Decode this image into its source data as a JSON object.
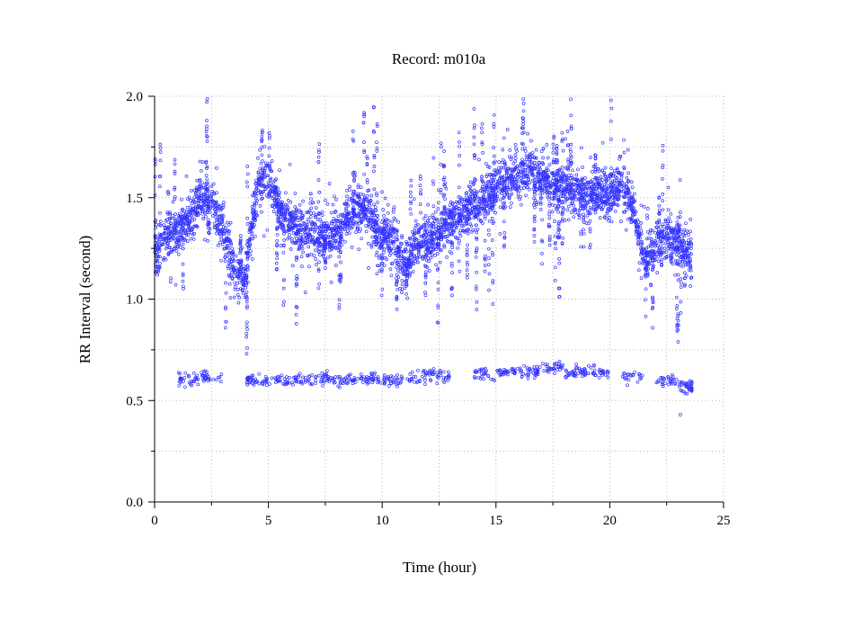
{
  "chart_data": {
    "type": "scatter",
    "title": "Record:  m010a",
    "xlabel": "Time (hour)",
    "ylabel": "RR Interval (second)",
    "xlim": [
      0,
      25
    ],
    "ylim": [
      0,
      2.0
    ],
    "x_ticks": [
      0,
      5,
      10,
      15,
      20,
      25
    ],
    "x_tick_labels": [
      "0",
      "5",
      "10",
      "15",
      "20",
      "25"
    ],
    "x_minor_ticks": [
      2.5,
      7.5,
      12.5,
      17.5,
      22.5
    ],
    "y_ticks": [
      0,
      0.5,
      1.0,
      1.5,
      2.0
    ],
    "y_tick_labels": [
      "0.0",
      "0.5",
      "1.0",
      "1.5",
      "2.0"
    ],
    "y_minor_ticks": [
      0.25,
      0.75,
      1.25,
      1.75
    ],
    "grid": true,
    "marker": "open-circle",
    "series_color": "#3333ff",
    "series": [
      {
        "band_centers": [
          [
            0.0,
            1.22
          ],
          [
            0.5,
            1.3
          ],
          [
            1.0,
            1.33
          ],
          [
            1.5,
            1.4
          ],
          [
            2.0,
            1.5
          ],
          [
            2.5,
            1.48
          ],
          [
            3.0,
            1.35
          ],
          [
            3.5,
            1.12
          ],
          [
            4.0,
            1.12
          ],
          [
            4.5,
            1.55
          ],
          [
            5.0,
            1.6
          ],
          [
            5.5,
            1.45
          ],
          [
            6.0,
            1.38
          ],
          [
            6.5,
            1.33
          ],
          [
            7.0,
            1.32
          ],
          [
            7.5,
            1.3
          ],
          [
            8.0,
            1.33
          ],
          [
            8.5,
            1.4
          ],
          [
            9.0,
            1.45
          ],
          [
            9.5,
            1.4
          ],
          [
            10.0,
            1.32
          ],
          [
            10.5,
            1.3
          ],
          [
            11.0,
            1.15
          ],
          [
            11.5,
            1.27
          ],
          [
            12.0,
            1.3
          ],
          [
            12.5,
            1.32
          ],
          [
            13.0,
            1.38
          ],
          [
            13.5,
            1.42
          ],
          [
            14.0,
            1.45
          ],
          [
            14.5,
            1.5
          ],
          [
            15.0,
            1.55
          ],
          [
            15.5,
            1.58
          ],
          [
            16.0,
            1.6
          ],
          [
            16.5,
            1.65
          ],
          [
            17.0,
            1.62
          ],
          [
            17.5,
            1.55
          ],
          [
            18.0,
            1.55
          ],
          [
            18.5,
            1.52
          ],
          [
            19.0,
            1.52
          ],
          [
            19.5,
            1.53
          ],
          [
            20.0,
            1.52
          ],
          [
            20.5,
            1.55
          ],
          [
            21.0,
            1.45
          ],
          [
            21.5,
            1.2
          ],
          [
            22.0,
            1.25
          ],
          [
            22.5,
            1.3
          ],
          [
            23.0,
            1.28
          ],
          [
            23.5,
            1.22
          ]
        ],
        "ectopic_band_centers": [
          [
            1.5,
            0.6
          ],
          [
            2.5,
            0.62
          ],
          [
            4.5,
            0.6
          ],
          [
            5.5,
            0.6
          ],
          [
            6.5,
            0.6
          ],
          [
            7.5,
            0.61
          ],
          [
            8.5,
            0.6
          ],
          [
            9.5,
            0.61
          ],
          [
            10.5,
            0.6
          ],
          [
            11.5,
            0.61
          ],
          [
            12.5,
            0.62
          ],
          [
            14.5,
            0.63
          ],
          [
            15.5,
            0.64
          ],
          [
            16.5,
            0.64
          ],
          [
            17.5,
            0.66
          ],
          [
            18.5,
            0.64
          ],
          [
            19.5,
            0.64
          ],
          [
            21.0,
            0.62
          ],
          [
            22.5,
            0.6
          ],
          [
            23.5,
            0.57
          ]
        ]
      }
    ]
  }
}
